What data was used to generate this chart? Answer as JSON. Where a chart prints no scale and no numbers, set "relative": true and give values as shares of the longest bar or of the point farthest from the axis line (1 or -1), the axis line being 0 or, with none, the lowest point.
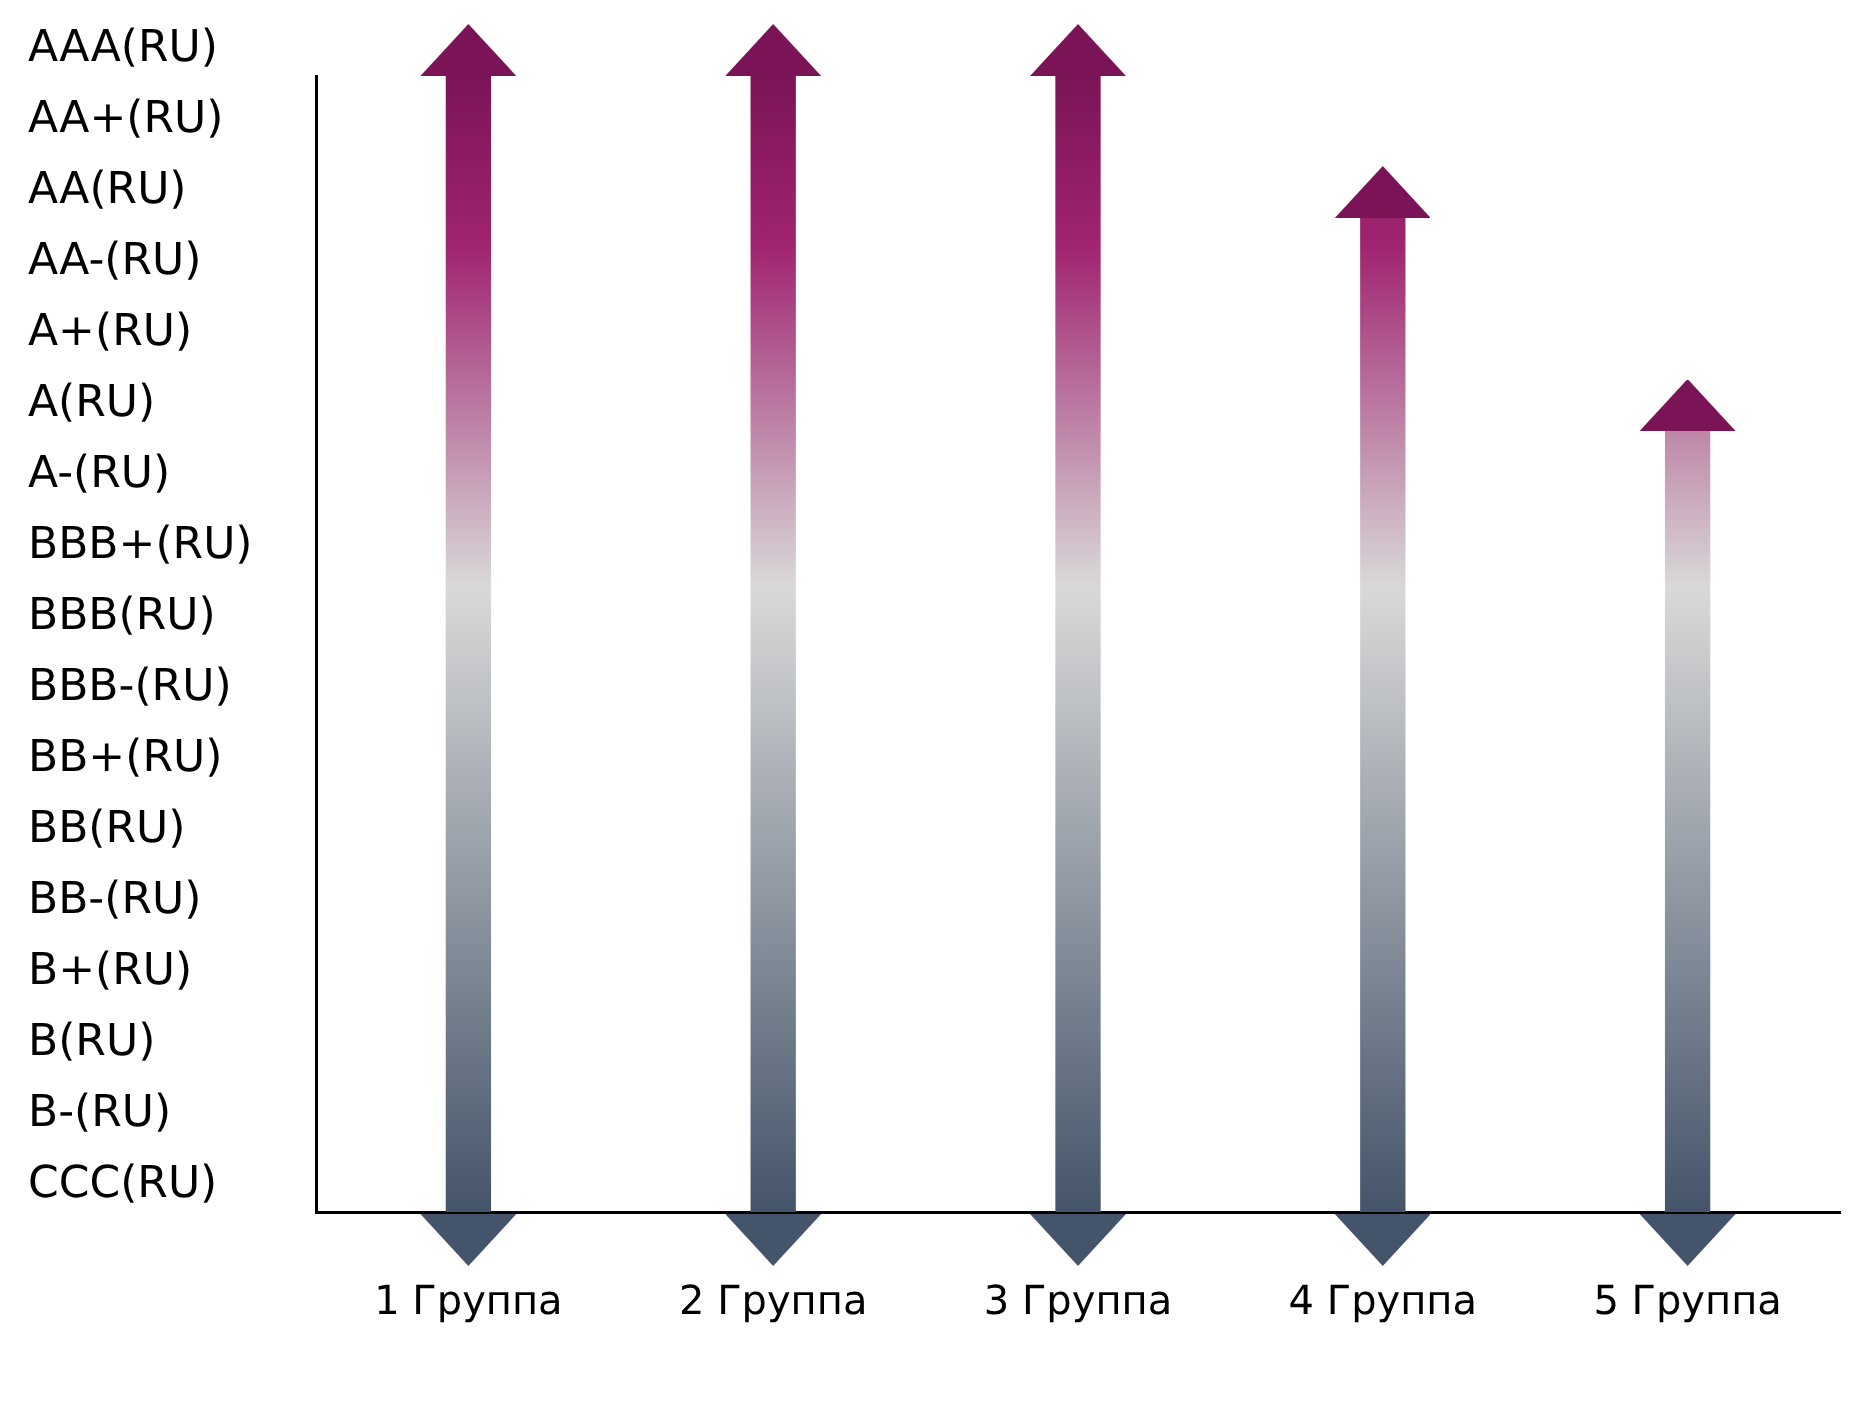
{
  "chart_data": {
    "type": "bar",
    "categories": [
      "1 Группа",
      "2 Группа",
      "3 Группа",
      "4 Группа",
      "5 Группа"
    ],
    "series": [
      {
        "color": "#7b1457",
        "values": [
          1,
          1,
          1,
          0.875,
          0.6875
        ]
      }
    ],
    "relative": true,
    "annotations": [
      "AAA(RU)",
      "AA+(RU)",
      "AA(RU)",
      "AA-(RU)",
      "A+(RU)",
      "A(RU)",
      "A-(RU)",
      "BBB+(RU)",
      "BBB(RU)",
      "BBB-(RU)",
      "BB+(RU)",
      "BB(RU)",
      "BB-(RU)",
      "B+(RU)",
      "B(RU)",
      "B-(RU)",
      "CCC(RU)"
    ],
    "grid": false,
    "legend": false
  }
}
